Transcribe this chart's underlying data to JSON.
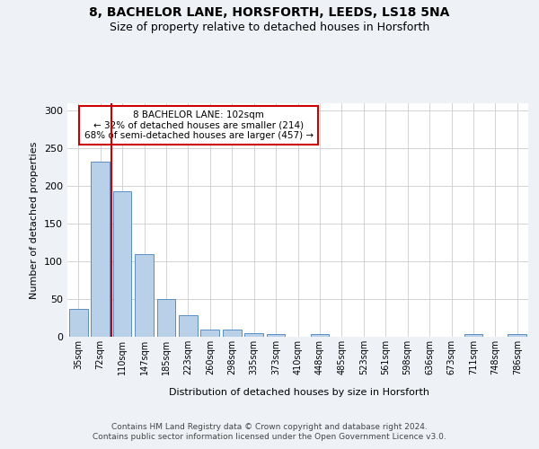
{
  "title_line1": "8, BACHELOR LANE, HORSFORTH, LEEDS, LS18 5NA",
  "title_line2": "Size of property relative to detached houses in Horsforth",
  "xlabel": "Distribution of detached houses by size in Horsforth",
  "ylabel": "Number of detached properties",
  "bar_color": "#b8d0e8",
  "bar_edge_color": "#5a8fc0",
  "categories": [
    "35sqm",
    "72sqm",
    "110sqm",
    "147sqm",
    "185sqm",
    "223sqm",
    "260sqm",
    "298sqm",
    "335sqm",
    "373sqm",
    "410sqm",
    "448sqm",
    "485sqm",
    "523sqm",
    "561sqm",
    "598sqm",
    "636sqm",
    "673sqm",
    "711sqm",
    "748sqm",
    "786sqm"
  ],
  "values": [
    37,
    232,
    193,
    110,
    50,
    29,
    10,
    10,
    5,
    4,
    0,
    3,
    0,
    0,
    0,
    0,
    0,
    0,
    3,
    0,
    3
  ],
  "ylim": [
    0,
    310
  ],
  "yticks": [
    0,
    50,
    100,
    150,
    200,
    250,
    300
  ],
  "annotation_text_line1": "8 BACHELOR LANE: 102sqm",
  "annotation_text_line2": "← 32% of detached houses are smaller (214)",
  "annotation_text_line3": "68% of semi-detached houses are larger (457) →",
  "footer_line1": "Contains HM Land Registry data © Crown copyright and database right 2024.",
  "footer_line2": "Contains public sector information licensed under the Open Government Licence v3.0.",
  "background_color": "#eef2f7",
  "plot_bg_color": "#ffffff",
  "grid_color": "#cccccc",
  "red_line_color": "#cc0000",
  "annotation_box_color": "#ffffff",
  "annotation_box_edge": "#cc0000"
}
